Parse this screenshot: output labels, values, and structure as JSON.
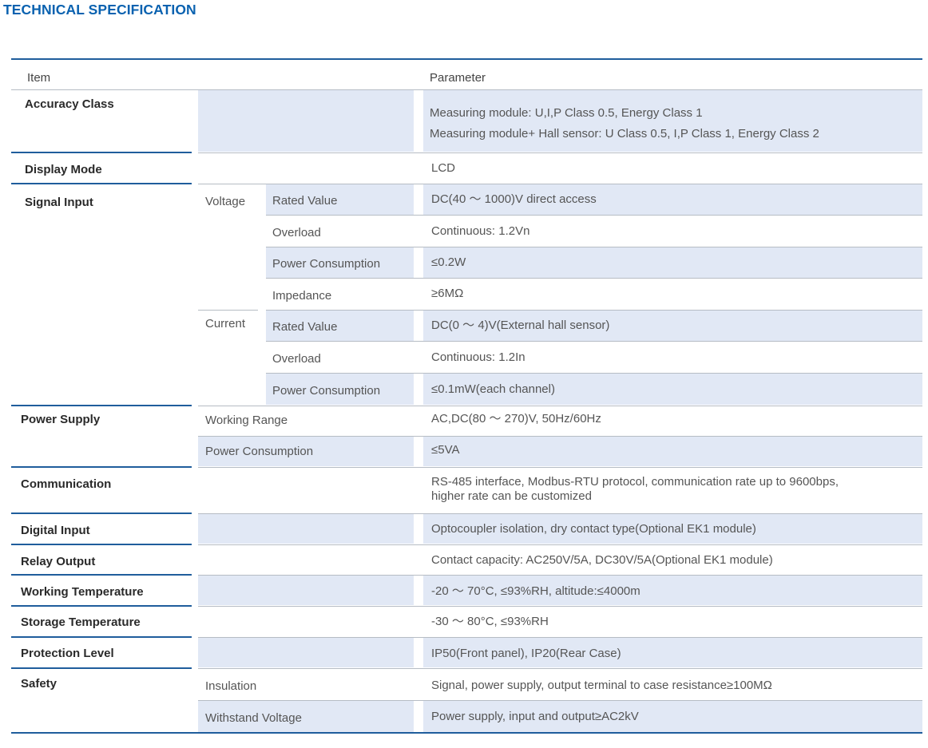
{
  "title": "TECHNICAL SPECIFICATION",
  "header": {
    "item": "Item",
    "parameter": "Parameter"
  },
  "rows": {
    "accuracy": {
      "label": "Accuracy Class",
      "value1": "Measuring module: U,I,P Class 0.5, Energy Class 1",
      "value2": "Measuring module+ Hall sensor: U Class 0.5, I,P Class 1, Energy Class 2"
    },
    "display": {
      "label": "Display Mode",
      "value": "LCD"
    },
    "signal": {
      "label": "Signal Input",
      "voltage": "Voltage",
      "current": "Current",
      "v_rated": "Rated Value",
      "v_rated_val": "DC(40 ～ 1000)V direct access",
      "v_overload": "Overload",
      "v_overload_val": "Continuous: 1.2Vn",
      "v_power": "Power Consumption",
      "v_power_val": "≤0.2W",
      "v_impedance": "Impedance",
      "v_impedance_val": "≥6MΩ",
      "c_rated": "Rated Value",
      "c_rated_val": "DC(0 ～ 4)V(External hall sensor)",
      "c_overload": "Overload",
      "c_overload_val": "Continuous: 1.2In",
      "c_power": "Power Consumption",
      "c_power_val": "≤0.1mW(each channel)"
    },
    "power": {
      "label": "Power Supply",
      "range": "Working Range",
      "range_val": "AC,DC(80 ～ 270)V, 50Hz/60Hz",
      "consumption": "Power Consumption",
      "consumption_val": "≤5VA"
    },
    "comm": {
      "label": "Communication",
      "value1": "RS-485 interface, Modbus-RTU protocol, communication rate up to 9600bps,",
      "value2": "higher rate can be customized"
    },
    "digital": {
      "label": "Digital Input",
      "value": "Optocoupler isolation, dry contact type(Optional EK1 module)"
    },
    "relay": {
      "label": "Relay Output",
      "value": "Contact capacity: AC250V/5A, DC30V/5A(Optional EK1 module)"
    },
    "worktemp": {
      "label": "Working Temperature",
      "value": "-20 ～ 70°C, ≤93%RH, altitude:≤4000m"
    },
    "storetemp": {
      "label": "Storage Temperature",
      "value": "-30 ～ 80°C, ≤93%RH"
    },
    "protection": {
      "label": "Protection Level",
      "value": "IP50(Front panel), IP20(Rear Case)"
    },
    "safety": {
      "label": "Safety",
      "insulation": "Insulation",
      "insulation_val": "Signal, power supply, output terminal to case resistance≥100MΩ",
      "withstand": "Withstand Voltage",
      "withstand_val": "Power supply, input and output≥AC2kV"
    }
  }
}
